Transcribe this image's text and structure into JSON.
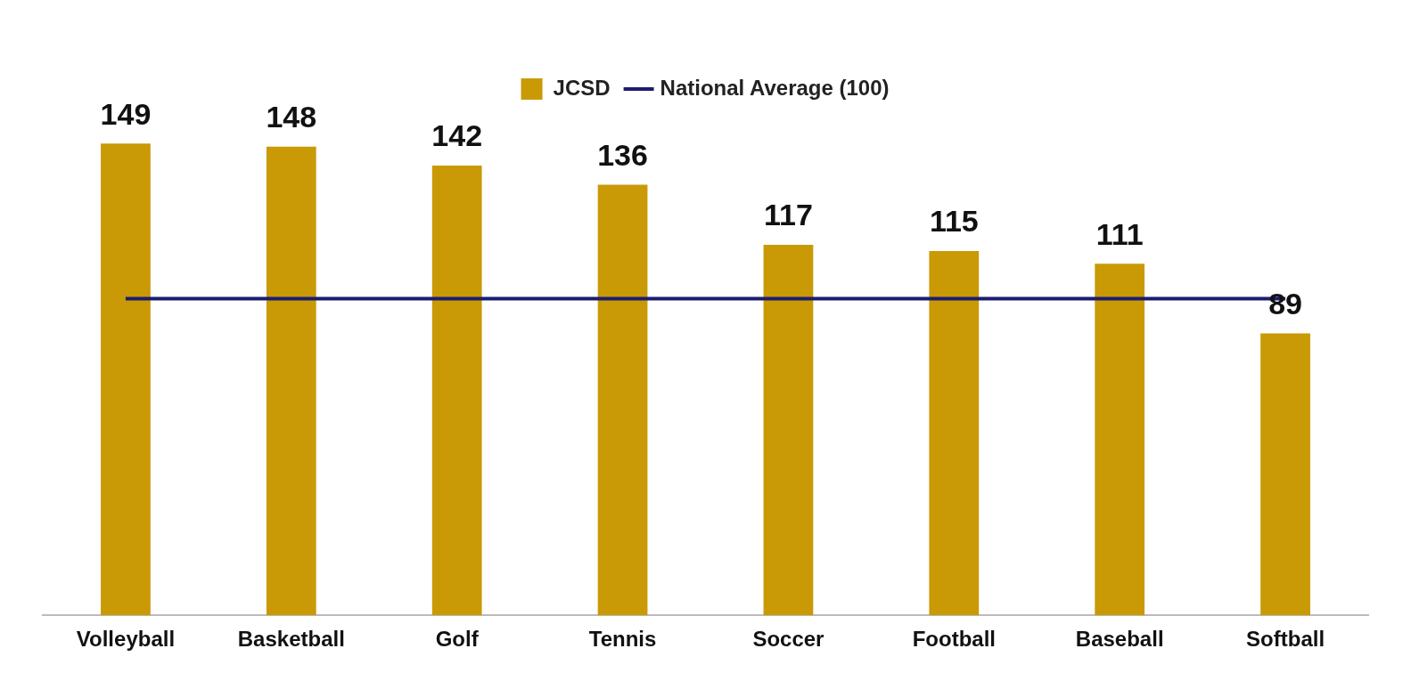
{
  "chart_data": {
    "type": "bar",
    "categories": [
      "Volleyball",
      "Basketball",
      "Golf",
      "Tennis",
      "Soccer",
      "Football",
      "Baseball",
      "Softball"
    ],
    "series": [
      {
        "name": "JCSD",
        "color": "#c99a06",
        "values": [
          149,
          148,
          142,
          136,
          117,
          115,
          111,
          89
        ],
        "value_labels": [
          "149",
          "148",
          "142",
          "136",
          "117",
          "115",
          "111",
          "89"
        ]
      },
      {
        "name": "National Average (100)",
        "type": "line",
        "color": "#1c1c6e",
        "values": [
          100,
          100,
          100,
          100,
          100,
          100,
          100,
          100
        ]
      }
    ],
    "legend": "top",
    "grid": false,
    "marker": "none"
  }
}
